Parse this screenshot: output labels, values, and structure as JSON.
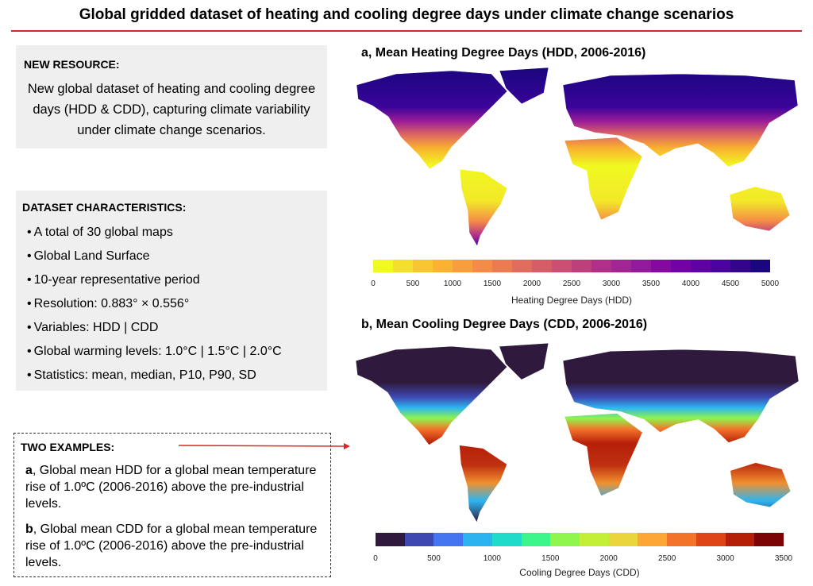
{
  "title": "Global gridded dataset of heating and cooling degree days under climate change scenarios",
  "new_resource": {
    "heading": "NEW RESOURCE:",
    "body": "New global dataset of heating and cooling degree days (HDD & CDD), capturing climate variability under climate change scenarios."
  },
  "characteristics": {
    "heading": "DATASET CHARACTERISTICS:",
    "items": [
      "A total of 30 global maps",
      "Global Land Surface",
      "10-year representative period",
      "Resolution: 0.883° × 0.556°",
      "Variables: HDD | CDD",
      "Global warming levels: 1.0°C | 1.5°C | 2.0°C",
      "Statistics: mean, median, P10, P90, SD"
    ]
  },
  "examples": {
    "heading": "TWO EXAMPLES:",
    "a_letter": "a",
    "a_text": ", Global mean HDD for a global mean temperature rise of 1.0ºC (2006-2016) above the pre-industrial levels.",
    "b_letter": "b",
    "b_text": ", Global mean CDD for a global mean temperature rise of 1.0ºC (2006-2016) above the pre-industrial levels."
  },
  "colors": {
    "accent_red": "#d9262a",
    "box_bg": "#efefef"
  },
  "map_a": {
    "title": "a, Mean Heating Degree Days (HDD, 2006-2016)",
    "colorbar_label": "Heating Degree Days (HDD)",
    "ticks": [
      "0",
      "500",
      "1000",
      "1500",
      "2000",
      "2500",
      "3000",
      "3500",
      "4000",
      "4500",
      "5000"
    ],
    "range": [
      0,
      5000
    ],
    "step": 250,
    "colors": [
      "#f0f921",
      "#f4e02a",
      "#f8c72f",
      "#fbb230",
      "#fa9e3b",
      "#f58b47",
      "#ee7a52",
      "#e36b5d",
      "#d85c67",
      "#cc4e72",
      "#bf3f7d",
      "#b12f88",
      "#a32593",
      "#94199c",
      "#8608a3",
      "#7201a8",
      "#5e02a6",
      "#4a03a0",
      "#33058f",
      "#1a067e"
    ]
  },
  "map_b": {
    "title": "b, Mean Cooling Degree Days (CDD, 2006-2016)",
    "colorbar_label": "Cooling Degree Days (CDD)",
    "ticks": [
      "0",
      "500",
      "1000",
      "1500",
      "2000",
      "2500",
      "3000",
      "3500"
    ],
    "range": [
      0,
      3500
    ],
    "step": 250,
    "colors": [
      "#2f1a3e",
      "#3e48b0",
      "#4575f0",
      "#2db4f0",
      "#1edcc8",
      "#3cf58a",
      "#8ef54a",
      "#c3f034",
      "#e8d63c",
      "#fca636",
      "#f4732a",
      "#df4414",
      "#b51f08",
      "#7d0405"
    ]
  }
}
